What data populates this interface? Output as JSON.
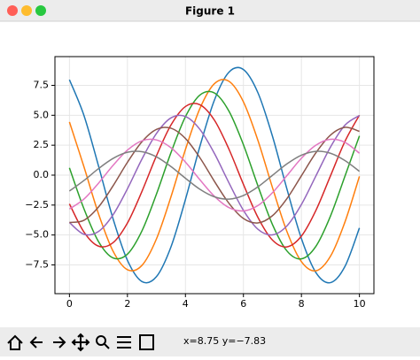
{
  "window": {
    "title": "Figure 1",
    "status": "x=8.75 y=−7.83"
  },
  "chart_data": {
    "type": "line",
    "x": [
      0,
      0.5,
      1,
      1.5,
      2,
      2.5,
      3,
      3.5,
      4,
      4.5,
      5,
      5.5,
      6,
      6.5,
      7,
      7.5,
      8,
      8.5,
      9,
      9.5,
      10
    ],
    "series": [
      {
        "color": "#1f77b4",
        "values": [
          7.97,
          4.99,
          0.79,
          -3.61,
          -7.12,
          -8.89,
          -8.48,
          -6.0,
          -2.04,
          2.41,
          6.27,
          8.6,
          8.82,
          6.88,
          3.26,
          -1.16,
          -5.3,
          -8.14,
          -8.98,
          -7.63,
          -4.41
        ]
      },
      {
        "color": "#ff7f0e",
        "values": [
          4.44,
          0.7,
          -3.21,
          -6.33,
          -7.9,
          -7.54,
          -5.33,
          -1.82,
          2.14,
          5.57,
          7.64,
          7.84,
          6.12,
          2.9,
          -1.03,
          -4.71,
          -7.23,
          -7.99,
          -6.78,
          -3.92,
          -0.1
        ]
      },
      {
        "color": "#2ca02c",
        "values": [
          0.61,
          -2.81,
          -5.54,
          -6.91,
          -6.6,
          -4.66,
          -1.59,
          1.87,
          4.88,
          6.69,
          6.86,
          5.35,
          2.54,
          -0.9,
          -4.12,
          -6.33,
          -6.99,
          -5.94,
          -3.43,
          -0.09,
          3.28
        ]
      },
      {
        "color": "#d62728",
        "values": [
          -2.4,
          -4.75,
          -5.93,
          -5.65,
          -4.0,
          -1.36,
          1.61,
          4.18,
          5.73,
          5.88,
          4.59,
          2.17,
          -0.77,
          -3.53,
          -5.42,
          -5.99,
          -5.09,
          -2.94,
          -0.07,
          2.81,
          5.01
        ]
      },
      {
        "color": "#9467bd",
        "values": [
          -3.96,
          -4.94,
          -4.71,
          -3.33,
          -1.14,
          1.34,
          3.48,
          4.78,
          4.9,
          3.82,
          1.81,
          -0.64,
          -2.94,
          -4.52,
          -4.99,
          -4.24,
          -2.45,
          -0.06,
          2.34,
          4.17,
          4.98
        ]
      },
      {
        "color": "#8c564b",
        "values": [
          -3.95,
          -3.77,
          -2.67,
          -0.91,
          1.07,
          2.79,
          3.82,
          3.92,
          3.06,
          1.45,
          -0.52,
          -2.35,
          -3.62,
          -3.99,
          -3.39,
          -1.96,
          -0.05,
          1.87,
          3.34,
          3.99,
          3.66
        ]
      },
      {
        "color": "#e377c2",
        "values": [
          -2.83,
          -2.0,
          -0.68,
          0.8,
          2.09,
          2.87,
          2.94,
          2.29,
          1.09,
          -0.39,
          -1.77,
          -2.71,
          -2.99,
          -2.54,
          -1.47,
          -0.04,
          1.41,
          2.5,
          2.99,
          2.74,
          1.83
        ]
      },
      {
        "color": "#7f7f7f",
        "values": [
          -1.33,
          -0.45,
          0.54,
          1.39,
          1.91,
          1.96,
          1.53,
          0.72,
          -0.26,
          -1.18,
          -1.81,
          -2.0,
          -1.7,
          -0.98,
          -0.02,
          0.94,
          1.67,
          1.99,
          1.83,
          1.22,
          0.32
        ]
      }
    ],
    "xlim": [
      -0.5,
      10.5
    ],
    "ylim": [
      -9.9,
      9.9
    ],
    "xticks": [
      0,
      2,
      4,
      6,
      8,
      10
    ],
    "yticks": [
      {
        "value": -7.5,
        "label": "−7.5"
      },
      {
        "value": -5,
        "label": "−5.0"
      },
      {
        "value": -2.5,
        "label": "−2.5"
      },
      {
        "value": 0,
        "label": "0.0"
      },
      {
        "value": 2.5,
        "label": "2.5"
      },
      {
        "value": 5,
        "label": "5.0"
      },
      {
        "value": 7.5,
        "label": "7.5"
      }
    ],
    "grid": true
  }
}
